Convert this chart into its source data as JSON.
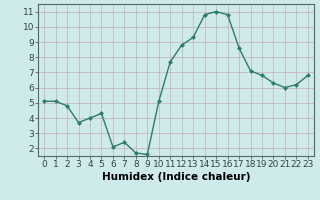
{
  "x": [
    0,
    1,
    2,
    3,
    4,
    5,
    6,
    7,
    8,
    9,
    10,
    11,
    12,
    13,
    14,
    15,
    16,
    17,
    18,
    19,
    20,
    21,
    22,
    23
  ],
  "y": [
    5.1,
    5.1,
    4.8,
    3.7,
    4.0,
    4.3,
    2.1,
    2.4,
    1.7,
    1.6,
    5.1,
    7.7,
    8.8,
    9.3,
    10.8,
    11.0,
    10.8,
    8.6,
    7.1,
    6.8,
    6.3,
    6.0,
    6.2,
    6.8
  ],
  "line_color": "#2d7d6b",
  "marker": "D",
  "marker_size": 2.0,
  "line_width": 1.0,
  "bg_color": "#ceeaea",
  "grid_color_major": "#c8b0b0",
  "grid_color_minor": "#ddd0d0",
  "xlabel": "Humidex (Indice chaleur)",
  "ylim": [
    1.5,
    11.5
  ],
  "xlim": [
    -0.5,
    23.5
  ],
  "yticks": [
    2,
    3,
    4,
    5,
    6,
    7,
    8,
    9,
    10,
    11
  ],
  "xticks": [
    0,
    1,
    2,
    3,
    4,
    5,
    6,
    7,
    8,
    9,
    10,
    11,
    12,
    13,
    14,
    15,
    16,
    17,
    18,
    19,
    20,
    21,
    22,
    23
  ],
  "xlabel_fontsize": 7.5,
  "tick_fontsize": 6.5,
  "spine_color": "#556666"
}
